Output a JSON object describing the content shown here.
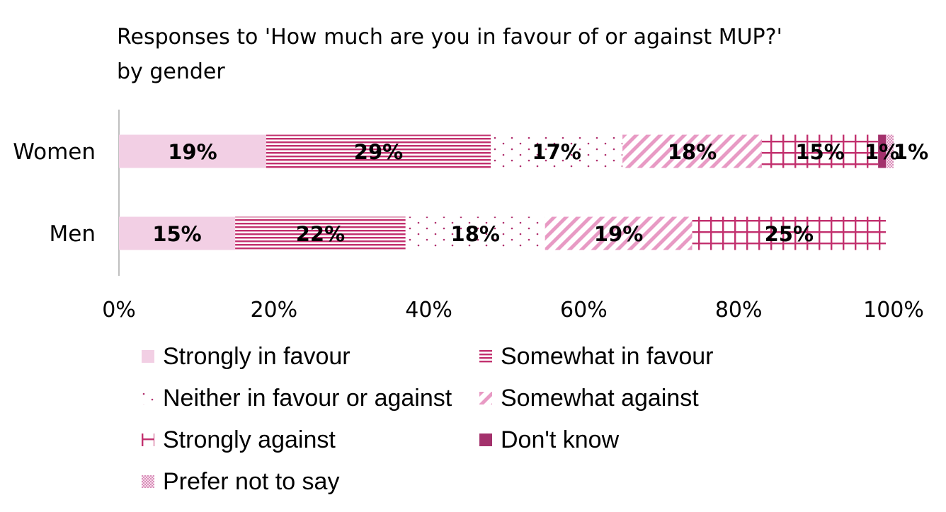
{
  "chart_data": {
    "type": "bar",
    "orientation": "horizontal",
    "stacked": true,
    "title_lines": [
      "Responses to 'How much are you in favour of or against MUP?'",
      "by gender"
    ],
    "categories": [
      "Women",
      "Men"
    ],
    "series": [
      {
        "name": "Strongly in favour",
        "values": [
          19,
          15
        ],
        "labels": [
          "19%",
          "15%"
        ],
        "pattern": "solid-light",
        "color": "#f2cfe4"
      },
      {
        "name": "Somewhat in favour",
        "values": [
          29,
          22
        ],
        "labels": [
          "29%",
          "22%"
        ],
        "pattern": "hlines",
        "color": "#c2306e"
      },
      {
        "name": "Neither in favour or against",
        "values": [
          17,
          18
        ],
        "labels": [
          "17%",
          "18%"
        ],
        "pattern": "dots",
        "color": "#b0306e"
      },
      {
        "name": "Somewhat against",
        "values": [
          18,
          19
        ],
        "labels": [
          "18%",
          "19%"
        ],
        "pattern": "diagonal",
        "color": "#e89ac4"
      },
      {
        "name": "Strongly against",
        "values": [
          15,
          25
        ],
        "labels": [
          "15%",
          "25%"
        ],
        "pattern": "grid",
        "color": "#c2306e"
      },
      {
        "name": "Don't know",
        "values": [
          1,
          0
        ],
        "labels": [
          "1%",
          ""
        ],
        "pattern": "solid-dark",
        "color": "#a3316c"
      },
      {
        "name": "Prefer not to say",
        "values": [
          1,
          0
        ],
        "labels": [
          "1%",
          ""
        ],
        "pattern": "checker",
        "color": "#e7b3d0"
      }
    ],
    "x_ticks": [
      "0%",
      "20%",
      "40%",
      "60%",
      "80%",
      "100%"
    ],
    "xlim": [
      0,
      100
    ],
    "grid": false,
    "legend_position": "bottom"
  }
}
